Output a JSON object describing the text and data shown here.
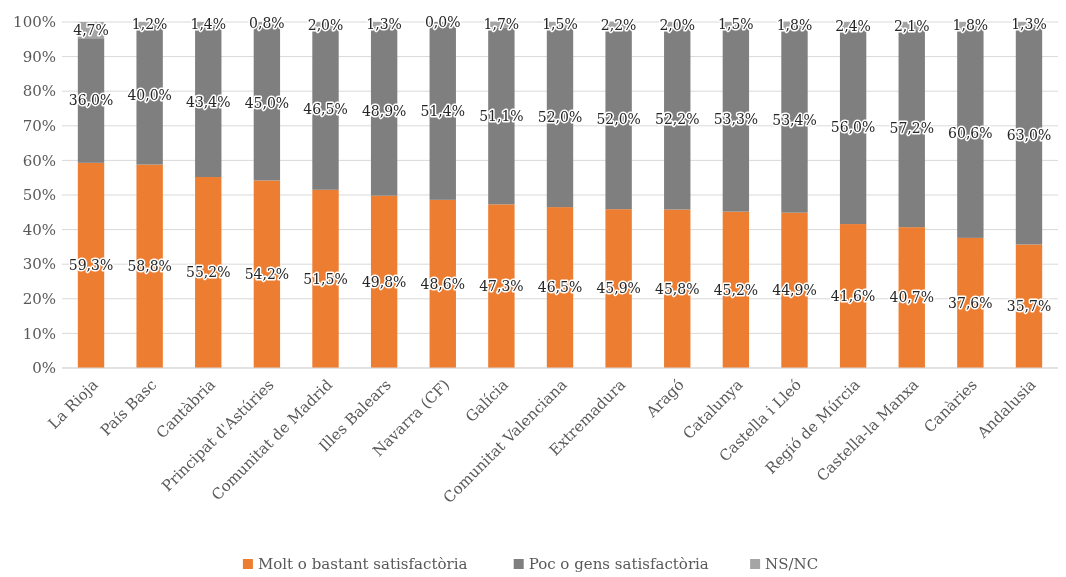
{
  "chart_data": {
    "type": "bar",
    "stacked": true,
    "grid": "y",
    "legend": "bottom",
    "categories": [
      "La Rioja",
      "País Basc",
      "Cantàbria",
      "Principat d'Astúries",
      "Comunitat de Madrid",
      "Illes Balears",
      "Navarra (CF)",
      "Galícia",
      "Comunitat Valenciana",
      "Extremadura",
      "Aragó",
      "Catalunya",
      "Castella i Lleó",
      "Regió de Múrcia",
      "Castella-la Manxa",
      "Canàries",
      "Andalusia"
    ],
    "series": [
      {
        "name": "Molt o bastant satisfactòria",
        "color": "#ed7d31",
        "values": [
          59.3,
          58.8,
          55.2,
          54.2,
          51.5,
          49.8,
          48.6,
          47.3,
          46.5,
          45.9,
          45.8,
          45.2,
          44.9,
          41.6,
          40.7,
          37.6,
          35.7
        ],
        "value_labels": [
          "59,3%",
          "58,8%",
          "55,2%",
          "54,2%",
          "51,5%",
          "49,8%",
          "48,6%",
          "47,3%",
          "46,5%",
          "45,9%",
          "45,8%",
          "45,2%",
          "44,9%",
          "41,6%",
          "40,7%",
          "37,6%",
          "35,7%"
        ]
      },
      {
        "name": "Poc o gens satisfactòria",
        "color": "#7f7f7f",
        "values": [
          36.0,
          40.0,
          43.4,
          45.0,
          46.5,
          48.9,
          51.4,
          51.1,
          52.0,
          52.0,
          52.2,
          53.3,
          53.4,
          56.0,
          57.2,
          60.6,
          63.0
        ],
        "value_labels": [
          "36,0%",
          "40,0%",
          "43,4%",
          "45,0%",
          "46,5%",
          "48,9%",
          "51,4%",
          "51,1%",
          "52,0%",
          "52,0%",
          "52,2%",
          "53,3%",
          "53,4%",
          "56,0%",
          "57,2%",
          "60,6%",
          "63,0%"
        ]
      },
      {
        "name": "NS/NC",
        "color": "#a5a5a5",
        "values": [
          4.7,
          1.2,
          1.4,
          0.8,
          2.0,
          1.3,
          0.0,
          1.7,
          1.5,
          2.2,
          2.0,
          1.5,
          1.8,
          2.4,
          2.1,
          1.8,
          1.3
        ],
        "value_labels": [
          "4,7%",
          "1,2%",
          "1,4%",
          "0,8%",
          "2,0%",
          "1,3%",
          "0,0%",
          "1,7%",
          "1,5%",
          "2,2%",
          "2,0%",
          "1,5%",
          "1,8%",
          "2,4%",
          "2,1%",
          "1,8%",
          "1,3%"
        ]
      }
    ],
    "ylim": [
      0,
      100
    ],
    "yticks": [
      {
        "value": 0,
        "label": "0%"
      },
      {
        "value": 10,
        "label": "10%"
      },
      {
        "value": 20,
        "label": "20%"
      },
      {
        "value": 30,
        "label": "30%"
      },
      {
        "value": 40,
        "label": "40%"
      },
      {
        "value": 50,
        "label": "50%"
      },
      {
        "value": 60,
        "label": "60%"
      },
      {
        "value": 70,
        "label": "70%"
      },
      {
        "value": 80,
        "label": "80%"
      },
      {
        "value": 90,
        "label": "90%"
      },
      {
        "value": 100,
        "label": "100%"
      }
    ]
  }
}
